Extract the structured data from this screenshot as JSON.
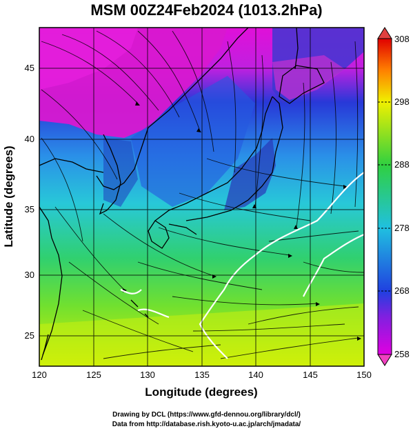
{
  "title": "MSM 00Z24Feb2024 (1013.2hPa)",
  "x_axis": {
    "label": "Longitude (degrees)",
    "ticks": [
      "120",
      "125",
      "130",
      "135",
      "140",
      "145",
      "150"
    ],
    "range": [
      120,
      150
    ]
  },
  "y_axis": {
    "label": "Latitude  (degrees)",
    "ticks": [
      "25",
      "30",
      "35",
      "40",
      "45"
    ],
    "range": [
      22.4,
      47.6
    ]
  },
  "colorbar": {
    "ticks": [
      "258",
      "268",
      "278",
      "288",
      "298",
      "308"
    ],
    "range": [
      258,
      308
    ],
    "colors": [
      "#e000e0",
      "#2040e0",
      "#20c0e0",
      "#30d040",
      "#f0f000",
      "#ff8000",
      "#e00000"
    ]
  },
  "credits": {
    "line1": "Drawing by DCL (https://www.gfd-dennou.org/library/dcl/)",
    "line2": "Data from http://database.rish.kyoto-u.ac.jp/arch/jmadata/"
  }
}
